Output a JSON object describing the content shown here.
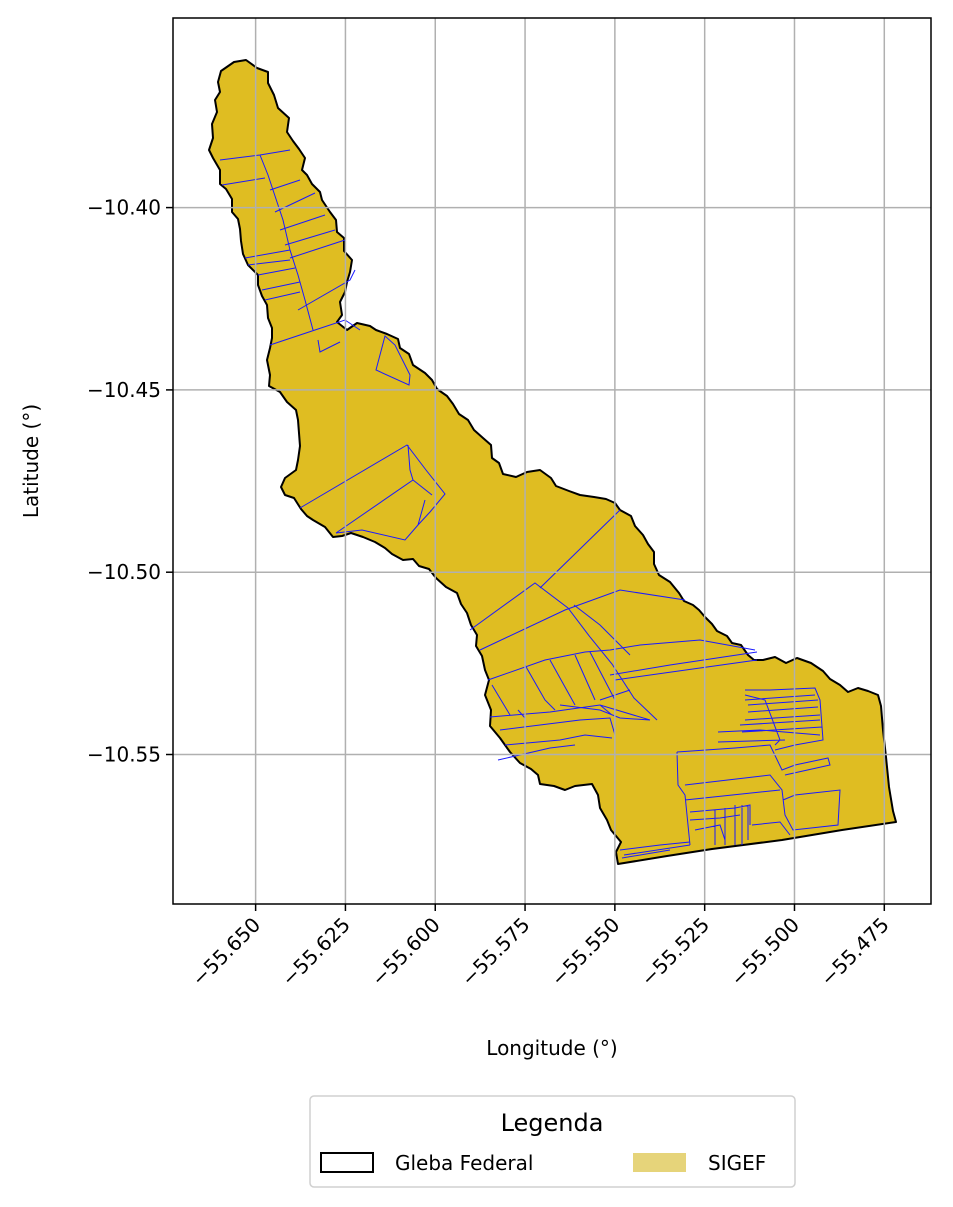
{
  "chart_data": {
    "type": "map",
    "xlabel": "Longitude (°)",
    "ylabel": "Latitude (°)",
    "x_ticks": [
      "−55.650",
      "−55.625",
      "−55.600",
      "−55.575",
      "−55.550",
      "−55.525",
      "−55.500",
      "−55.475"
    ],
    "x_tick_values": [
      -55.65,
      -55.625,
      -55.6,
      -55.575,
      -55.55,
      -55.525,
      -55.5,
      -55.475
    ],
    "y_ticks": [
      "−10.40",
      "−10.45",
      "−10.50",
      "−10.55"
    ],
    "y_tick_values": [
      -10.4,
      -10.45,
      -10.5,
      -10.55
    ],
    "xlim": [
      -55.673,
      -55.462
    ],
    "ylim": [
      -10.591,
      -10.348
    ],
    "grid": true,
    "legend": {
      "title": "Legenda",
      "placement": "bottom-center",
      "entries": [
        {
          "label": "Gleba Federal",
          "style": "outline",
          "color": "#000000"
        },
        {
          "label": "SIGEF",
          "style": "fill",
          "color": "#e6d47a"
        }
      ]
    },
    "colors": {
      "gleba_fill": "#dfbd22",
      "gleba_edge": "#000000",
      "sigef_edge": "#1a1aff",
      "grid": "#b0b0b0"
    }
  }
}
